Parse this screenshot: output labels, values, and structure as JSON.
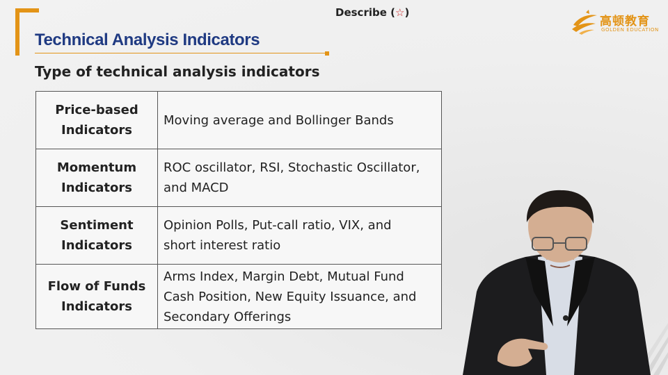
{
  "header": {
    "title": "Technical Analysis Indicators",
    "describe_label": "Describe (",
    "describe_star": "☆",
    "describe_close": ")"
  },
  "logo": {
    "name_cn": "高顿教育",
    "name_en": "GOLDEN EDUCATION",
    "icon": "golden-education-logo-icon"
  },
  "subtitle": "Type of technical analysis indicators",
  "table": {
    "rows": [
      {
        "category_line1": "Price-based",
        "category_line2": "Indicators",
        "examples_line1": "Moving average and Bollinger Bands",
        "examples_line2": "",
        "examples_line3": ""
      },
      {
        "category_line1": "Momentum",
        "category_line2": "Indicators",
        "examples_line1": "ROC oscillator, RSI, Stochastic Oscillator,",
        "examples_line2": "and MACD",
        "examples_line3": ""
      },
      {
        "category_line1": "Sentiment",
        "category_line2": "Indicators",
        "examples_line1": "Opinion Polls, Put-call ratio, VIX, and",
        "examples_line2": "short interest ratio",
        "examples_line3": ""
      },
      {
        "category_line1": "Flow of Funds",
        "category_line2": "Indicators",
        "examples_line1": "Arms Index, Margin Debt, Mutual Fund",
        "examples_line2": "Cash Position, New Equity Issuance, and",
        "examples_line3": "Secondary Offerings"
      }
    ]
  },
  "colors": {
    "accent": "#e39417",
    "title": "#1f3a82",
    "star": "#c81e1e",
    "table_border": "#555555"
  }
}
